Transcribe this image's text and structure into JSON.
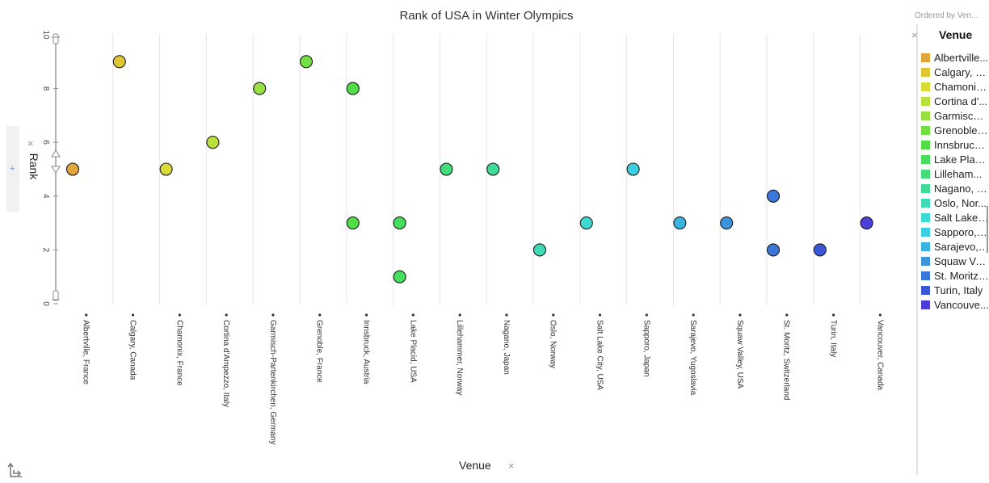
{
  "header": {
    "title": "Rank of USA in Winter Olympics",
    "ordered_by": "Ordered by Ven..."
  },
  "axes": {
    "y_title": "Rank",
    "x_title": "Venue",
    "close_glyph": "×",
    "add_glyph": "+"
  },
  "legend": {
    "title": "Venue",
    "close_glyph": "×",
    "items": [
      {
        "label": "Albertville...",
        "color": "#e0a63a"
      },
      {
        "label": "Calgary, C...",
        "color": "#dfc734"
      },
      {
        "label": "Chamonix...",
        "color": "#d9dc35"
      },
      {
        "label": "Cortina d'...",
        "color": "#b9e03b"
      },
      {
        "label": "Garmisch-...",
        "color": "#97e03f"
      },
      {
        "label": "Grenoble, ...",
        "color": "#74df42"
      },
      {
        "label": "Innsbruck,...",
        "color": "#52dd46"
      },
      {
        "label": "Lake Placi...",
        "color": "#46dc5c"
      },
      {
        "label": "Lilleham...",
        "color": "#44dc78"
      },
      {
        "label": "Nagano, J...",
        "color": "#41db98"
      },
      {
        "label": "Oslo, Nor...",
        "color": "#3edbb5"
      },
      {
        "label": "Salt Lake ...",
        "color": "#3bdad2"
      },
      {
        "label": "Sapporo, J...",
        "color": "#3ad0e2"
      },
      {
        "label": "Sarajevo, ...",
        "color": "#39b4e0"
      },
      {
        "label": "Squaw Val...",
        "color": "#3a95dd"
      },
      {
        "label": "St. Moritz, ...",
        "color": "#3b77da"
      },
      {
        "label": "Turin, Italy",
        "color": "#3c58d8"
      },
      {
        "label": "Vancouve...",
        "color": "#4a3fd8"
      }
    ]
  },
  "chart_data": {
    "type": "scatter",
    "title": "Rank of USA in Winter Olympics",
    "xlabel": "Venue",
    "ylabel": "Rank",
    "ylim": [
      0,
      10
    ],
    "yticks": [
      0,
      2,
      4,
      6,
      8,
      10
    ],
    "grid": true,
    "legend_position": "right",
    "categories": [
      "Albertville, France",
      "Calgary, Canada",
      "Chamonix, France",
      "Cortina d'Ampezzo, Italy",
      "Garmisch-Partenkirchen, Germany",
      "Grenoble, France",
      "Innsbruck, Austria",
      "Lake Placid, USA",
      "Lillehammer, Norway",
      "Nagano, Japan",
      "Oslo, Norway",
      "Salt Lake City, USA",
      "Sapporo, Japan",
      "Sarajevo, Yugoslavia",
      "Squaw Valley, USA",
      "St. Moritz, Switzerland",
      "Turin, Italy",
      "Vancouver, Canada"
    ],
    "colors": [
      "#e0a63a",
      "#dfc734",
      "#d9dc35",
      "#b9e03b",
      "#97e03f",
      "#74df42",
      "#52dd46",
      "#46dc5c",
      "#44dc78",
      "#41db98",
      "#3edbb5",
      "#3bdad2",
      "#3ad0e2",
      "#39b4e0",
      "#3a95dd",
      "#3b77da",
      "#3c58d8",
      "#4a3fd8"
    ],
    "points": [
      {
        "x": "Albertville, France",
        "y": 5
      },
      {
        "x": "Calgary, Canada",
        "y": 9
      },
      {
        "x": "Chamonix, France",
        "y": 5
      },
      {
        "x": "Cortina d'Ampezzo, Italy",
        "y": 6
      },
      {
        "x": "Garmisch-Partenkirchen, Germany",
        "y": 8
      },
      {
        "x": "Grenoble, France",
        "y": 9
      },
      {
        "x": "Innsbruck, Austria",
        "y": 8
      },
      {
        "x": "Innsbruck, Austria",
        "y": 3
      },
      {
        "x": "Lake Placid, USA",
        "y": 3
      },
      {
        "x": "Lake Placid, USA",
        "y": 1
      },
      {
        "x": "Lillehammer, Norway",
        "y": 5
      },
      {
        "x": "Nagano, Japan",
        "y": 5
      },
      {
        "x": "Oslo, Norway",
        "y": 2
      },
      {
        "x": "Salt Lake City, USA",
        "y": 3
      },
      {
        "x": "Sapporo, Japan",
        "y": 5
      },
      {
        "x": "Sarajevo, Yugoslavia",
        "y": 3
      },
      {
        "x": "Squaw Valley, USA",
        "y": 3
      },
      {
        "x": "St. Moritz, Switzerland",
        "y": 4
      },
      {
        "x": "St. Moritz, Switzerland",
        "y": 2
      },
      {
        "x": "Turin, Italy",
        "y": 2
      },
      {
        "x": "Vancouver, Canada",
        "y": 3
      }
    ]
  }
}
